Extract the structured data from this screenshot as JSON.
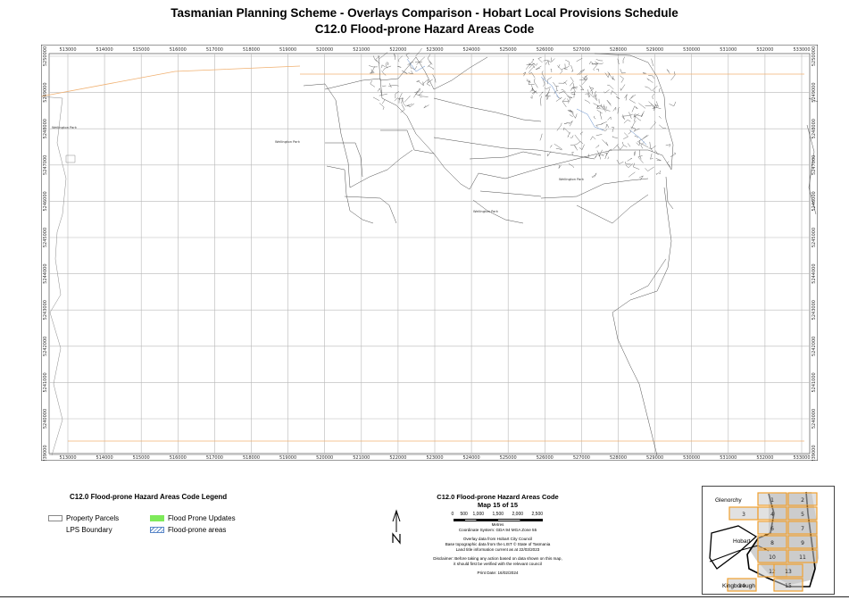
{
  "title": {
    "line1": "Tasmanian Planning Scheme - Overlays Comparison - Hobart Local Provisions Schedule",
    "line2": "C12.0 Flood-prone Hazard Areas Code"
  },
  "map": {
    "x_ticks": [
      "513000",
      "514000",
      "515000",
      "516000",
      "517000",
      "518000",
      "519000",
      "520000",
      "521000",
      "522000",
      "523000",
      "524000",
      "525000",
      "526000",
      "527000",
      "528000",
      "529000",
      "530000",
      "531000",
      "532000",
      "533000"
    ],
    "y_ticks": [
      "5250000",
      "5249000",
      "5248000",
      "5247000",
      "5246000",
      "5245000",
      "5244000",
      "5243000",
      "5242000",
      "5241000",
      "5240000",
      "5239000"
    ],
    "places": [
      "Wellington Park",
      "Wellington Park",
      "Wellington Park",
      "Wellington Park"
    ]
  },
  "legend": {
    "title": "C12.0 Flood-prone Hazard Areas Code Legend",
    "property_parcels": "Property Parcels",
    "lps_boundary": "LPS Boundary",
    "flood_updates": "Flood Prone Updates",
    "flood_areas": "Flood-prone areas"
  },
  "info": {
    "title": "C12.0 Flood-prone Hazard Areas Code",
    "map_of": "Map 15 of 15",
    "scale_labels": [
      "0",
      "500",
      "1,000",
      "1,500",
      "2,000",
      "2,500"
    ],
    "scale_unit": "Metres",
    "coord_system": "Coordinate System: GDA 94 MGA Zone 55",
    "overlay_line1": "Overlay data from Hobart City Council",
    "overlay_line2": "Base topographic data from the LIST © State of Tasmania",
    "overlay_line3": "Land title information current as at 22/03/2023",
    "disclaimer1": "Disclaimer: Before taking any action based on data shown on this map,",
    "disclaimer2": "it should first be verified with the relevant council",
    "print_date": "Print Date: 16/02/2024"
  },
  "keymap": {
    "glenorchy": "Glenorchy",
    "hobart": "Hobart",
    "kingborough": "Kingborough",
    "tiles": [
      "1",
      "2",
      "3",
      "4",
      "5",
      "6",
      "7",
      "8",
      "9",
      "10",
      "11",
      "12",
      "13",
      "14",
      "15"
    ]
  },
  "colors": {
    "grid": "#b8b8b8",
    "parcel": "#3a3a3a",
    "boundary": "#f0b070",
    "flood_hatch": "#5a87c8",
    "update": "#7eea5a",
    "keymap_tile": "#f0a030"
  }
}
